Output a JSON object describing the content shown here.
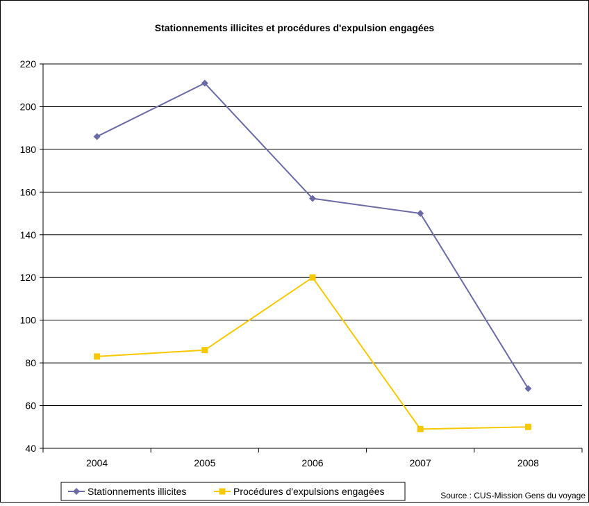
{
  "chart_data": {
    "type": "line",
    "title": "Stationnements illicites et procédures d'expulsion engagées",
    "xlabel": "",
    "ylabel": "",
    "categories": [
      "2004",
      "2005",
      "2006",
      "2007",
      "2008"
    ],
    "ylim": [
      40,
      220
    ],
    "yticks": [
      40,
      60,
      80,
      100,
      120,
      140,
      160,
      180,
      200,
      220
    ],
    "grid": true,
    "legend_position": "bottom-left",
    "series": [
      {
        "name": "Stationnements illicites",
        "values": [
          186,
          211,
          157,
          150,
          68
        ],
        "color": "#6a6aa6",
        "marker": "diamond"
      },
      {
        "name": "Procédures d'expulsions engagées",
        "values": [
          83,
          86,
          120,
          49,
          50
        ],
        "color": "#f5c800",
        "marker": "square"
      }
    ],
    "source": "Source : CUS-Mission Gens du voyage"
  }
}
